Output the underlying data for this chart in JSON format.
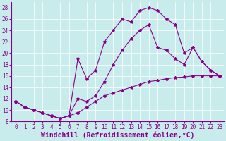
{
  "xlabel": "Windchill (Refroidissement éolien,°C)",
  "bg_color": "#c8ecec",
  "line_color": "#880088",
  "xlim": [
    -0.5,
    23.5
  ],
  "ylim": [
    8,
    29
  ],
  "xticks": [
    0,
    1,
    2,
    3,
    4,
    5,
    6,
    7,
    8,
    9,
    10,
    11,
    12,
    13,
    14,
    15,
    16,
    17,
    18,
    19,
    20,
    21,
    22,
    23
  ],
  "yticks": [
    8,
    10,
    12,
    14,
    16,
    18,
    20,
    22,
    24,
    26,
    28
  ],
  "line1_x": [
    0,
    1,
    2,
    3,
    4,
    5,
    6,
    7,
    8,
    9,
    10,
    11,
    12,
    13,
    14,
    15,
    16,
    17,
    18,
    19,
    20,
    21,
    22,
    23
  ],
  "line1_y": [
    11.5,
    10.5,
    10.0,
    9.5,
    9.0,
    8.5,
    9.0,
    9.5,
    10.5,
    11.5,
    12.5,
    13.0,
    13.5,
    14.0,
    14.5,
    15.0,
    15.2,
    15.5,
    15.7,
    15.8,
    16.0,
    16.0,
    16.0,
    16.0
  ],
  "line2_x": [
    0,
    1,
    2,
    3,
    4,
    5,
    6,
    7,
    8,
    9,
    10,
    11,
    12,
    13,
    14,
    15,
    16,
    17,
    18,
    19,
    20,
    21,
    22,
    23
  ],
  "line2_y": [
    11.5,
    10.5,
    10.0,
    9.5,
    9.0,
    8.5,
    9.0,
    19.0,
    15.5,
    17.0,
    22.0,
    24.0,
    26.0,
    25.5,
    27.5,
    28.0,
    27.5,
    26.0,
    25.0,
    20.0,
    21.0,
    18.5,
    17.0,
    16.0
  ],
  "line3_x": [
    0,
    1,
    2,
    3,
    4,
    5,
    6,
    7,
    8,
    9,
    10,
    11,
    12,
    13,
    14,
    15,
    16,
    17,
    18,
    19,
    20,
    21,
    22,
    23
  ],
  "line3_y": [
    11.5,
    10.5,
    10.0,
    9.5,
    9.0,
    8.5,
    9.0,
    12.0,
    11.5,
    12.5,
    15.0,
    18.0,
    20.5,
    22.5,
    24.0,
    25.0,
    21.0,
    20.5,
    19.0,
    18.0,
    21.0,
    18.5,
    17.0,
    16.0
  ],
  "font_color": "#880088",
  "tick_fontsize": 5.5,
  "label_fontsize": 7.0
}
